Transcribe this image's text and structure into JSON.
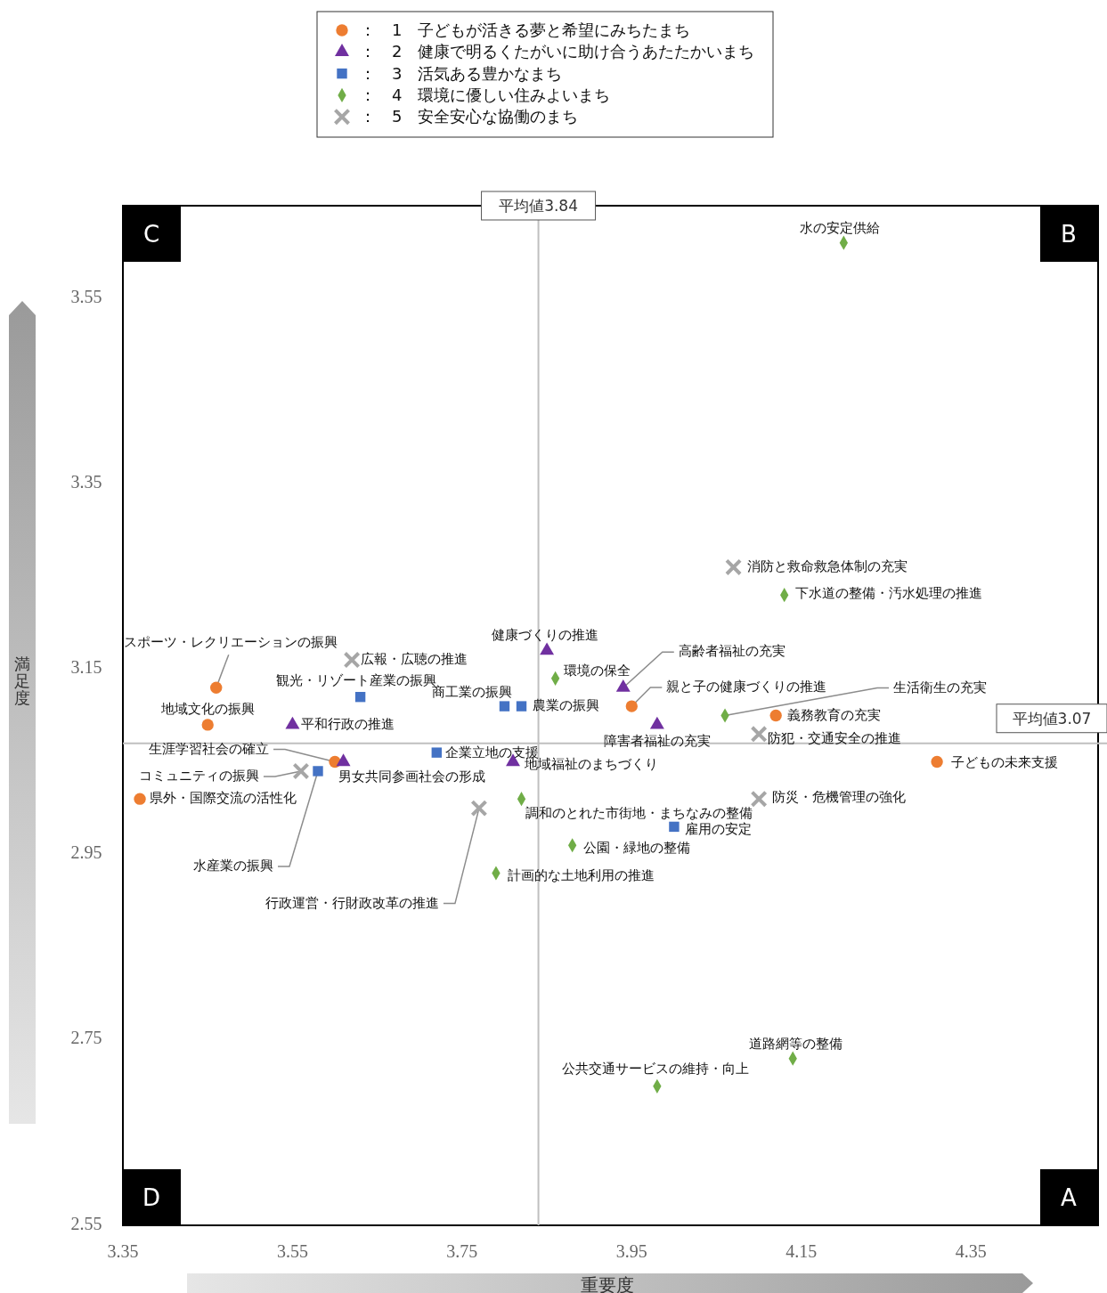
{
  "chart_data": {
    "type": "scatter",
    "xlabel": "重要度",
    "ylabel": "満足度",
    "xlim": [
      3.35,
      4.5
    ],
    "ylim": [
      2.55,
      3.65
    ],
    "xticks": [
      3.35,
      3.55,
      3.75,
      3.95,
      4.15,
      4.35
    ],
    "yticks": [
      2.55,
      2.75,
      2.95,
      3.15,
      3.35,
      3.55
    ],
    "grid": false,
    "legend": "top",
    "series": [
      {
        "name": "：　1　子どもが活きる夢と希望にみちたまち",
        "color": "#ed7d31",
        "marker": "circle",
        "x": [
          4.31,
          4.12,
          3.95,
          3.46,
          3.45,
          3.6,
          3.37
        ],
        "values": [
          3.05,
          3.1,
          3.11,
          3.13,
          3.09,
          3.05,
          3.01
        ]
      },
      {
        "name": "：　2　健康で明るくたがいに助け合うあたたかいまち",
        "color": "#7030a0",
        "marker": "triangle",
        "x": [
          3.85,
          3.94,
          3.98,
          3.55,
          3.61,
          3.81
        ],
        "values": [
          3.17,
          3.13,
          3.09,
          3.09,
          3.05,
          3.05
        ]
      },
      {
        "name": "：　3　活気ある豊かなまち",
        "color": "#4472c4",
        "marker": "square",
        "x": [
          3.63,
          3.8,
          3.82,
          3.72,
          3.58,
          4.0
        ],
        "values": [
          3.12,
          3.11,
          3.11,
          3.06,
          3.04,
          2.98
        ]
      },
      {
        "name": "：　4　環境に優しい住みよいまち",
        "color": "#70ad47",
        "marker": "diamond",
        "x": [
          4.2,
          4.13,
          3.86,
          4.06,
          3.82,
          3.88,
          3.79,
          4.14,
          3.98
        ],
        "values": [
          3.61,
          3.23,
          3.14,
          3.1,
          3.01,
          2.96,
          2.93,
          2.73,
          2.7
        ]
      },
      {
        "name": "：　5　安全安心な協働のまち",
        "color": "#a6a6a6",
        "marker": "cross",
        "x": [
          4.07,
          3.62,
          4.1,
          3.56,
          4.1,
          3.77
        ],
        "values": [
          3.26,
          3.16,
          3.08,
          3.04,
          3.01,
          3.0
        ]
      }
    ],
    "ref_lines": [
      {
        "axis": "x",
        "value": 3.84,
        "label": "平均値3.84",
        "color": "#bfbfbf"
      },
      {
        "axis": "y",
        "value": 3.07,
        "label": "平均値3.07",
        "color": "#bfbfbf"
      }
    ],
    "annotations": [
      "C",
      "B",
      "D",
      "A",
      {
        "text": "子どもの未来支援",
        "x": 4.31,
        "y": 3.05
      },
      {
        "text": "義務教育の充実",
        "x": 4.12,
        "y": 3.1
      },
      {
        "text": "親と子の健康づくりの推進",
        "x": 3.95,
        "y": 3.11
      },
      {
        "text": "スポーツ・レクリエーションの振興",
        "x": 3.46,
        "y": 3.13
      },
      {
        "text": "地域文化の振興",
        "x": 3.45,
        "y": 3.09
      },
      {
        "text": "生涯学習社会の確立",
        "x": 3.6,
        "y": 3.05
      },
      {
        "text": "県外・国際交流の活性化",
        "x": 3.37,
        "y": 3.01
      },
      {
        "text": "健康づくりの推進",
        "x": 3.85,
        "y": 3.17
      },
      {
        "text": "高齢者福祉の充実",
        "x": 3.94,
        "y": 3.13
      },
      {
        "text": "障害者福祉の充実",
        "x": 3.98,
        "y": 3.09
      },
      {
        "text": "平和行政の推進",
        "x": 3.55,
        "y": 3.09
      },
      {
        "text": "男女共同参画社会の形成",
        "x": 3.61,
        "y": 3.05
      },
      {
        "text": "地域福祉のまちづくり",
        "x": 3.81,
        "y": 3.05
      },
      {
        "text": "観光・リゾート産業の振興",
        "x": 3.63,
        "y": 3.12
      },
      {
        "text": "商工業の振興",
        "x": 3.8,
        "y": 3.11
      },
      {
        "text": "農業の振興",
        "x": 3.82,
        "y": 3.11
      },
      {
        "text": "企業立地の支援",
        "x": 3.72,
        "y": 3.06
      },
      {
        "text": "水産業の振興",
        "x": 3.58,
        "y": 3.04
      },
      {
        "text": "雇用の安定",
        "x": 4.0,
        "y": 2.98
      },
      {
        "text": "水の安定供給",
        "x": 4.2,
        "y": 3.61
      },
      {
        "text": "下水道の整備・汚水処理の推進",
        "x": 4.13,
        "y": 3.23
      },
      {
        "text": "環境の保全",
        "x": 3.86,
        "y": 3.14
      },
      {
        "text": "生活衛生の充実",
        "x": 4.06,
        "y": 3.1
      },
      {
        "text": "調和のとれた市街地・まちなみの整備",
        "x": 3.82,
        "y": 3.01
      },
      {
        "text": "公園・緑地の整備",
        "x": 3.88,
        "y": 2.96
      },
      {
        "text": "計画的な土地利用の推進",
        "x": 3.79,
        "y": 2.93
      },
      {
        "text": "道路網等の整備",
        "x": 4.14,
        "y": 2.73
      },
      {
        "text": "公共交通サービスの維持・向上",
        "x": 3.98,
        "y": 2.7
      },
      {
        "text": "消防と救命救急体制の充実",
        "x": 4.07,
        "y": 3.26
      },
      {
        "text": "広報・広聴の推進",
        "x": 3.62,
        "y": 3.16
      },
      {
        "text": "防犯・交通安全の推進",
        "x": 4.1,
        "y": 3.08
      },
      {
        "text": "コミュニティの振興",
        "x": 3.56,
        "y": 3.04
      },
      {
        "text": "防災・危機管理の強化",
        "x": 4.1,
        "y": 3.01
      },
      {
        "text": "行政運営・行財政改革の推進",
        "x": 3.77,
        "y": 3.0
      }
    ]
  }
}
